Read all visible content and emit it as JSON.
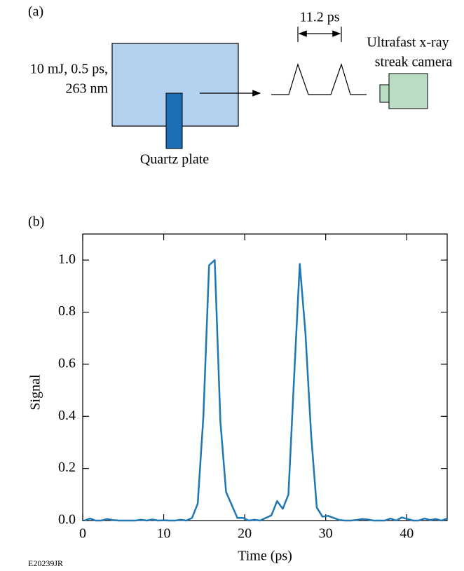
{
  "panel_a": {
    "label": "(a)",
    "laser_label": [
      "10 mJ, 0.5 ps,",
      "263 nm"
    ],
    "plate_label": "Quartz plate",
    "delay_label": "11.2 ps",
    "camera_label": [
      "Ultrafast x-ray",
      "streak camera"
    ]
  },
  "panel_b_label": "(b)",
  "figure_id": "E20239JR",
  "chart_data": {
    "type": "line",
    "xlabel": "Time (ps)",
    "ylabel": "Signal",
    "color": "#1f77b4",
    "x": [
      0.2,
      0.9,
      1.6,
      2.3,
      3.0,
      3.7,
      4.4,
      5.1,
      5.8,
      6.5,
      7.2,
      7.9,
      8.6,
      9.3,
      10.0,
      10.7,
      11.4,
      12.1,
      12.8,
      13.5,
      14.2,
      14.9,
      15.6,
      16.3,
      17.0,
      17.7,
      18.4,
      19.1,
      19.8,
      20.5,
      21.2,
      21.9,
      22.6,
      23.3,
      24.0,
      24.7,
      25.4,
      26.1,
      26.8,
      27.5,
      28.2,
      28.9,
      29.6,
      30.3,
      31.0,
      31.7,
      32.4,
      33.1,
      33.8,
      34.5,
      35.2,
      35.9,
      36.6,
      37.3,
      38.0,
      38.7,
      39.4,
      40.1,
      40.8,
      41.5,
      42.2,
      42.9,
      43.6,
      44.3,
      45.0
    ],
    "values": [
      0,
      0.008,
      0,
      0,
      0.006,
      0.002,
      0,
      0,
      0,
      0,
      0.003,
      0,
      0.004,
      0,
      0.001,
      0,
      0,
      0.003,
      0,
      0.01,
      0.065,
      0.4,
      0.98,
      1.0,
      0.38,
      0.11,
      0.06,
      0.01,
      0.01,
      0,
      0.003,
      0,
      0.01,
      0.02,
      0.075,
      0.045,
      0.1,
      0.55,
      0.985,
      0.72,
      0.33,
      0.05,
      0.015,
      0.018,
      0.01,
      0.002,
      0,
      0,
      0.002,
      0.006,
      0.004,
      0,
      0,
      0,
      0.008,
      0,
      0.012,
      0.006,
      0,
      0,
      0.008,
      0.002,
      0.006,
      0,
      0.008
    ],
    "xlim": [
      0,
      45
    ],
    "ylim": [
      0,
      1.1
    ],
    "xticks": [
      0,
      10,
      20,
      30,
      40
    ],
    "yticks": [
      {
        "value": 0,
        "label": "0.0"
      },
      0.2,
      0.4,
      0.6,
      0.8,
      {
        "value": 1,
        "label": "1.0"
      }
    ]
  }
}
